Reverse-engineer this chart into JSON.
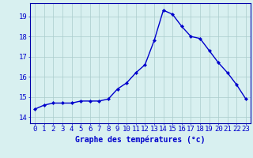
{
  "hours": [
    0,
    1,
    2,
    3,
    4,
    5,
    6,
    7,
    8,
    9,
    10,
    11,
    12,
    13,
    14,
    15,
    16,
    17,
    18,
    19,
    20,
    21,
    22,
    23
  ],
  "temperatures": [
    14.4,
    14.6,
    14.7,
    14.7,
    14.7,
    14.8,
    14.8,
    14.8,
    14.9,
    15.4,
    15.7,
    16.2,
    16.6,
    17.8,
    19.3,
    19.1,
    18.5,
    18.0,
    17.9,
    17.3,
    16.7,
    16.2,
    15.6,
    14.9
  ],
  "line_color": "#0000cc",
  "marker": "D",
  "marker_size": 2.2,
  "bg_color": "#d8f0f0",
  "grid_color": "#aacccc",
  "xlabel": "Graphe des températures (°c)",
  "xlabel_color": "#0000cc",
  "xlabel_fontsize": 7,
  "ylabel_ticks": [
    14,
    15,
    16,
    17,
    18,
    19
  ],
  "ylim": [
    13.7,
    19.65
  ],
  "xlim": [
    -0.5,
    23.5
  ],
  "tick_color": "#0000cc",
  "tick_fontsize": 6.5,
  "spine_color": "#0000aa",
  "linewidth": 1.0
}
